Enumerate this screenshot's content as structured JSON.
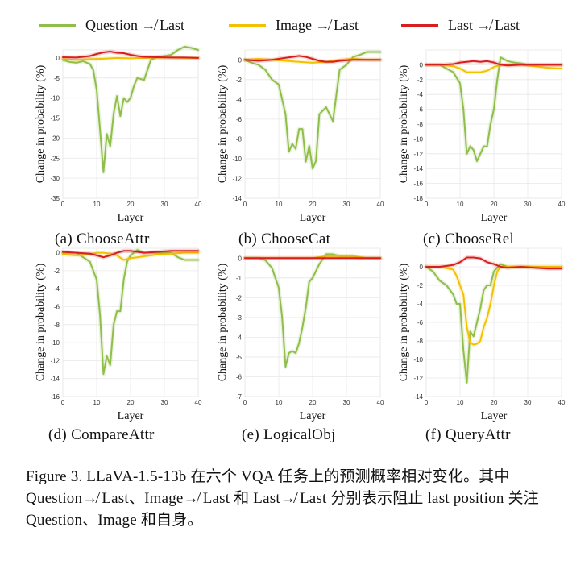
{
  "legend": [
    {
      "label": "Question ↛ Last",
      "color": "#8fbf4a"
    },
    {
      "label": "Image ↛ Last",
      "color": "#f2c200"
    },
    {
      "label": "Last ↛ Last",
      "color": "#d62020"
    }
  ],
  "figure_caption": "Figure 3.  LLaVA-1.5-13b 在六个 VQA 任务上的预测概率相对变化。其中 Question↛ Last、Image↛ Last 和 Last↛ Last 分别表示阻止 last position 关注 Question、Image 和自身。",
  "chart_data": [
    {
      "type": "line",
      "subcaption": "(a) ChooseAttr",
      "xlabel": "Layer",
      "ylabel": "Change in probability (%)",
      "xlim": [
        0,
        40
      ],
      "ylim": [
        -35,
        2
      ],
      "yticks": [
        0,
        -5,
        -10,
        -15,
        -20,
        -25,
        -30,
        -35
      ],
      "xticks": [
        0,
        10,
        20,
        30,
        40
      ],
      "grid": true,
      "series": [
        {
          "name": "Question ↛ Last",
          "color": "#8fbf4a",
          "x": [
            0,
            2,
            4,
            6,
            8,
            9,
            10,
            11,
            12,
            13,
            14,
            15,
            16,
            17,
            18,
            19,
            20,
            21,
            22,
            24,
            26,
            28,
            30,
            32,
            34,
            36,
            38,
            40
          ],
          "y": [
            -0.5,
            -1,
            -1.2,
            -0.8,
            -1.5,
            -3,
            -8,
            -18,
            -28.5,
            -19,
            -22,
            -14,
            -9.5,
            -14.5,
            -10,
            -11,
            -10,
            -7,
            -5,
            -5.5,
            -0.5,
            0.3,
            0.5,
            0.8,
            2,
            2.8,
            2.5,
            2
          ]
        },
        {
          "name": "Image ↛ Last",
          "color": "#f2c200",
          "x": [
            0,
            4,
            8,
            12,
            16,
            20,
            24,
            28,
            32,
            36,
            40
          ],
          "y": [
            -0.3,
            -0.5,
            -0.3,
            -0.2,
            0,
            -0.1,
            0,
            0.1,
            0.1,
            0,
            0
          ]
        },
        {
          "name": "Last ↛ Last",
          "color": "#d62020",
          "x": [
            0,
            4,
            8,
            10,
            12,
            14,
            16,
            18,
            20,
            22,
            24,
            28,
            32,
            36,
            40
          ],
          "y": [
            0.2,
            0.1,
            0.5,
            1,
            1.4,
            1.6,
            1.3,
            1.2,
            0.8,
            0.5,
            0.3,
            0.2,
            0.1,
            0.1,
            0
          ]
        }
      ]
    },
    {
      "type": "line",
      "subcaption": "(b) ChooseCat",
      "xlabel": "Layer",
      "ylabel": "Change in probability (%)",
      "xlim": [
        0,
        40
      ],
      "ylim": [
        -14,
        1
      ],
      "yticks": [
        0,
        -2,
        -4,
        -6,
        -8,
        -10,
        -12,
        -14
      ],
      "xticks": [
        0,
        10,
        20,
        30,
        40
      ],
      "grid": true,
      "series": [
        {
          "name": "Question ↛ Last",
          "color": "#8fbf4a",
          "x": [
            0,
            2,
            4,
            6,
            8,
            10,
            11,
            12,
            13,
            14,
            15,
            16,
            17,
            18,
            19,
            20,
            21,
            22,
            24,
            26,
            28,
            30,
            32,
            34,
            36,
            38,
            40
          ],
          "y": [
            0,
            -0.3,
            -0.5,
            -1,
            -2,
            -2.5,
            -4,
            -5.5,
            -9.3,
            -8.5,
            -9,
            -7,
            -7,
            -10.3,
            -8.7,
            -11,
            -10.2,
            -5.5,
            -4.8,
            -6.2,
            -1,
            -0.5,
            0.3,
            0.5,
            0.8,
            0.8,
            0.8
          ]
        },
        {
          "name": "Image ↛ Last",
          "color": "#f2c200",
          "x": [
            0,
            4,
            8,
            12,
            16,
            20,
            24,
            28,
            32,
            36,
            40
          ],
          "y": [
            0,
            0.1,
            0,
            -0.1,
            -0.2,
            -0.3,
            -0.2,
            0,
            0.1,
            0,
            0
          ]
        },
        {
          "name": "Last ↛ Last",
          "color": "#d62020",
          "x": [
            0,
            4,
            8,
            10,
            12,
            14,
            16,
            18,
            20,
            22,
            24,
            26,
            28,
            32,
            36,
            40
          ],
          "y": [
            0,
            -0.1,
            0,
            0.1,
            0.2,
            0.3,
            0.4,
            0.3,
            0.1,
            -0.1,
            -0.2,
            -0.2,
            -0.1,
            0,
            0,
            0
          ]
        }
      ]
    },
    {
      "type": "line",
      "subcaption": "(c) ChooseRel",
      "xlabel": "Layer",
      "ylabel": "Change in probability (%)",
      "xlim": [
        0,
        40
      ],
      "ylim": [
        -18,
        2
      ],
      "yticks": [
        0,
        -2,
        -4,
        -6,
        -8,
        -10,
        -12,
        -14,
        -16,
        -18
      ],
      "xticks": [
        0,
        10,
        20,
        30,
        40
      ],
      "grid": true,
      "series": [
        {
          "name": "Question ↛ Last",
          "color": "#8fbf4a",
          "x": [
            0,
            2,
            4,
            6,
            8,
            10,
            11,
            12,
            13,
            14,
            15,
            16,
            17,
            18,
            19,
            20,
            21,
            22,
            24,
            26,
            28,
            30,
            32,
            34,
            36,
            38,
            40
          ],
          "y": [
            0,
            0,
            0,
            -0.5,
            -1,
            -2.5,
            -6,
            -12,
            -11,
            -11.5,
            -13,
            -12,
            -11,
            -11,
            -8,
            -6,
            -2,
            1,
            0.5,
            0.3,
            0.2,
            0,
            0,
            0,
            0,
            0,
            0
          ]
        },
        {
          "name": "Image ↛ Last",
          "color": "#f2c200",
          "x": [
            0,
            4,
            8,
            10,
            12,
            14,
            16,
            18,
            20,
            22,
            24,
            28,
            32,
            36,
            40
          ],
          "y": [
            0,
            0,
            -0.2,
            -0.5,
            -1,
            -1,
            -1,
            -0.8,
            -0.3,
            0,
            0,
            0,
            -0.2,
            -0.4,
            -0.5
          ]
        },
        {
          "name": "Last ↛ Last",
          "color": "#d62020",
          "x": [
            0,
            4,
            8,
            10,
            12,
            14,
            16,
            18,
            20,
            22,
            24,
            28,
            32,
            36,
            40
          ],
          "y": [
            0,
            0,
            0.1,
            0.3,
            0.4,
            0.5,
            0.4,
            0.5,
            0.3,
            0,
            -0.1,
            0,
            0,
            0,
            0
          ]
        }
      ]
    },
    {
      "type": "line",
      "subcaption": "(d) CompareAttr",
      "xlabel": "Layer",
      "ylabel": "Change in probability (%)",
      "xlim": [
        0,
        40
      ],
      "ylim": [
        -16,
        0.5
      ],
      "yticks": [
        0,
        -2,
        -4,
        -6,
        -8,
        -10,
        -12,
        -14,
        -16
      ],
      "xticks": [
        0,
        10,
        20,
        30,
        40
      ],
      "grid": true,
      "series": [
        {
          "name": "Question ↛ Last",
          "color": "#8fbf4a",
          "x": [
            0,
            2,
            4,
            6,
            8,
            10,
            11,
            12,
            13,
            14,
            15,
            16,
            17,
            18,
            19,
            20,
            22,
            24,
            26,
            28,
            30,
            32,
            34,
            36,
            38,
            40
          ],
          "y": [
            0,
            0,
            0,
            -0.5,
            -1,
            -3,
            -7,
            -13.5,
            -11.5,
            -12.5,
            -8,
            -6.5,
            -6.5,
            -3,
            -1,
            -0.3,
            0.3,
            0,
            0,
            0,
            0,
            0,
            -0.5,
            -0.8,
            -0.8,
            -0.8
          ]
        },
        {
          "name": "Image ↛ Last",
          "color": "#f2c200",
          "x": [
            0,
            4,
            8,
            10,
            12,
            14,
            16,
            18,
            20,
            22,
            24,
            28,
            32,
            36,
            40
          ],
          "y": [
            -0.2,
            -0.3,
            -0.2,
            0,
            0,
            -0.1,
            -0.3,
            -0.8,
            -0.6,
            -0.5,
            -0.4,
            -0.2,
            -0.1,
            0,
            0
          ]
        },
        {
          "name": "Last ↛ Last",
          "color": "#d62020",
          "x": [
            0,
            4,
            8,
            10,
            12,
            14,
            16,
            18,
            20,
            22,
            24,
            28,
            32,
            36,
            40
          ],
          "y": [
            0.1,
            0,
            -0.1,
            -0.3,
            -0.5,
            -0.3,
            0,
            0.2,
            0.2,
            0.1,
            0,
            0.1,
            0.2,
            0.2,
            0.2
          ]
        }
      ]
    },
    {
      "type": "line",
      "subcaption": "(e) LogicalObj",
      "xlabel": "Layer",
      "ylabel": "Change in probability (%)",
      "xlim": [
        0,
        40
      ],
      "ylim": [
        -7,
        0.5
      ],
      "yticks": [
        0,
        -1,
        -2,
        -3,
        -4,
        -5,
        -6,
        -7
      ],
      "xticks": [
        0,
        10,
        20,
        30,
        40
      ],
      "grid": true,
      "series": [
        {
          "name": "Question ↛ Last",
          "color": "#8fbf4a",
          "x": [
            0,
            2,
            4,
            6,
            8,
            10,
            11,
            12,
            13,
            14,
            15,
            16,
            17,
            18,
            19,
            20,
            22,
            24,
            26,
            28,
            30,
            32,
            34,
            36,
            38,
            40
          ],
          "y": [
            0,
            0,
            0,
            -0.1,
            -0.5,
            -1.5,
            -3,
            -5.5,
            -4.8,
            -4.7,
            -4.8,
            -4.3,
            -3.5,
            -2.5,
            -1.2,
            -1,
            -0.3,
            0.2,
            0.2,
            0.1,
            0.1,
            0.1,
            0,
            0,
            0,
            0
          ]
        },
        {
          "name": "Image ↛ Last",
          "color": "#f2c200",
          "x": [
            0,
            4,
            8,
            12,
            16,
            20,
            24,
            28,
            32,
            36,
            40
          ],
          "y": [
            0,
            0,
            0,
            0,
            0,
            0,
            0.1,
            0.1,
            0.1,
            0,
            0
          ]
        },
        {
          "name": "Last ↛ Last",
          "color": "#d62020",
          "x": [
            0,
            4,
            8,
            12,
            16,
            20,
            24,
            28,
            32,
            36,
            40
          ],
          "y": [
            0,
            0,
            0,
            0,
            0,
            0,
            0,
            0,
            0,
            0,
            0
          ]
        }
      ]
    },
    {
      "type": "line",
      "subcaption": "(f) QueryAttr",
      "xlabel": "Layer",
      "ylabel": "Change in probability (%)",
      "xlim": [
        0,
        40
      ],
      "ylim": [
        -14,
        2
      ],
      "yticks": [
        0,
        -2,
        -4,
        -6,
        -8,
        -10,
        -12,
        -14
      ],
      "xticks": [
        0,
        10,
        20,
        30,
        40
      ],
      "grid": true,
      "series": [
        {
          "name": "Question ↛ Last",
          "color": "#8fbf4a",
          "x": [
            0,
            2,
            4,
            6,
            8,
            9,
            10,
            11,
            12,
            13,
            14,
            15,
            16,
            17,
            18,
            19,
            20,
            22,
            24,
            26,
            28,
            30,
            32,
            34,
            36,
            38,
            40
          ],
          "y": [
            0,
            -0.5,
            -1.5,
            -2,
            -3,
            -4,
            -4,
            -9,
            -12.5,
            -7,
            -7.5,
            -6,
            -4.5,
            -2.5,
            -2,
            -2,
            -0.5,
            0.3,
            0,
            0,
            0,
            0,
            0,
            0,
            0,
            0,
            0
          ]
        },
        {
          "name": "Image ↛ Last",
          "color": "#f2c200",
          "x": [
            0,
            4,
            8,
            9,
            10,
            11,
            12,
            13,
            14,
            15,
            16,
            17,
            18,
            19,
            20,
            21,
            22,
            24,
            28,
            32,
            36,
            40
          ],
          "y": [
            0,
            0,
            -0.3,
            -1,
            -2,
            -3,
            -6.5,
            -8.2,
            -8.4,
            -8.3,
            -8,
            -6.5,
            -5.5,
            -4,
            -2,
            -0.5,
            0,
            0,
            0,
            0,
            0,
            0
          ]
        },
        {
          "name": "Last ↛ Last",
          "color": "#d62020",
          "x": [
            0,
            4,
            8,
            10,
            12,
            14,
            16,
            18,
            20,
            22,
            24,
            28,
            32,
            36,
            40
          ],
          "y": [
            0,
            0,
            0.2,
            0.5,
            1,
            1,
            0.9,
            0.5,
            0.3,
            0,
            -0.1,
            0,
            -0.1,
            -0.2,
            -0.2
          ]
        }
      ]
    }
  ]
}
